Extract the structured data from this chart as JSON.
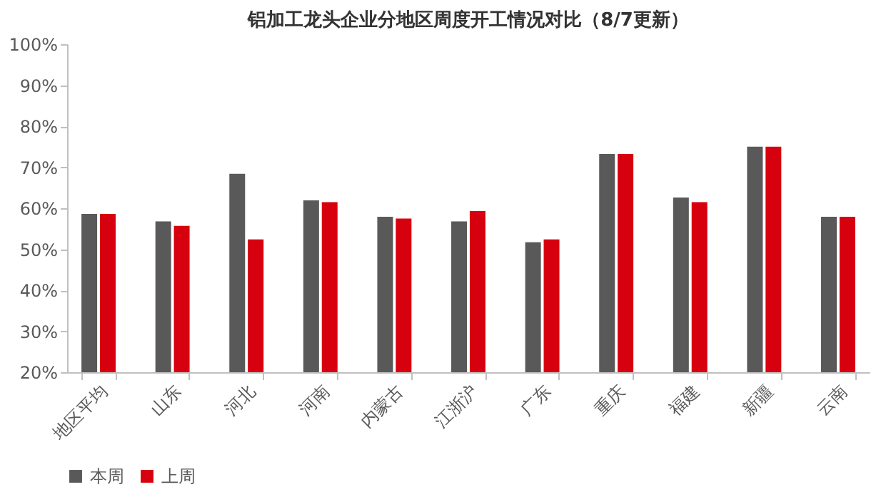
{
  "chart_data": {
    "type": "bar",
    "title": "铝加工龙头企业分地区周度开工情况对比（8/7更新）",
    "categories": [
      "地区平均",
      "山东",
      "河北",
      "河南",
      "内蒙古",
      "江浙沪",
      "广东",
      "重庆",
      "福建",
      "新疆",
      "云南"
    ],
    "series": [
      {
        "name": "本周",
        "color": "#595959",
        "values": [
          58.6,
          56.8,
          68.4,
          61.9,
          57.9,
          56.8,
          51.7,
          73.2,
          62.6,
          75.0,
          57.9
        ]
      },
      {
        "name": "上周",
        "color": "#d7000f",
        "values": [
          58.6,
          55.7,
          52.4,
          61.5,
          57.5,
          59.3,
          52.4,
          73.2,
          61.5,
          75.0,
          57.9
        ]
      }
    ],
    "ylim": [
      20,
      100
    ],
    "yticks": [
      {
        "value": 20,
        "label": "20%"
      },
      {
        "value": 30,
        "label": "30%"
      },
      {
        "value": 40,
        "label": "40%"
      },
      {
        "value": 50,
        "label": "50%"
      },
      {
        "value": 60,
        "label": "60%"
      },
      {
        "value": 70,
        "label": "70%"
      },
      {
        "value": 80,
        "label": "80%"
      },
      {
        "value": 90,
        "label": "90%"
      },
      {
        "value": 100,
        "label": "100%"
      }
    ],
    "grid": false,
    "legend": "bottom"
  }
}
